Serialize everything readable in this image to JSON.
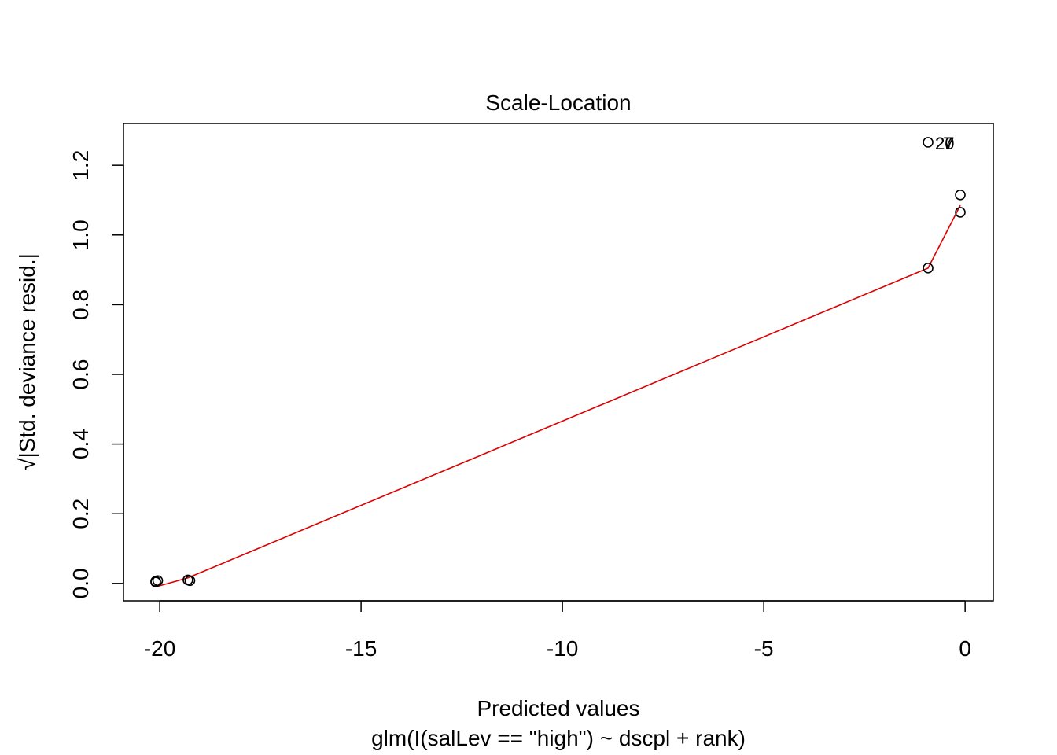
{
  "chart_data": {
    "type": "scatter",
    "title": "Scale-Location",
    "xlabel": "Predicted values",
    "ylabel": "√|Std. deviance resid.|",
    "subtitle": "glm(I(salLev == \"high\") ~ dscpl + rank)",
    "xlim": [
      -20.9,
      0.7
    ],
    "ylim": [
      -0.05,
      1.32
    ],
    "x_ticks": [
      -20,
      -15,
      -10,
      -5,
      0
    ],
    "x_tick_labels": [
      "-20",
      "-15",
      "-10",
      "-5",
      "0"
    ],
    "y_ticks": [
      0.0,
      0.2,
      0.4,
      0.6,
      0.8,
      1.0,
      1.2
    ],
    "y_tick_labels": [
      "0.0",
      "0.2",
      "0.4",
      "0.6",
      "0.8",
      "1.0",
      "1.2"
    ],
    "grid": false,
    "points": [
      {
        "x": -20.1,
        "y": 0.006
      },
      {
        "x": -20.05,
        "y": 0.008
      },
      {
        "x": -20.1,
        "y": 0.004
      },
      {
        "x": -19.3,
        "y": 0.01
      },
      {
        "x": -19.25,
        "y": 0.008
      },
      {
        "x": -0.92,
        "y": 0.905
      },
      {
        "x": -0.92,
        "y": 1.266
      },
      {
        "x": -0.12,
        "y": 1.115
      },
      {
        "x": -0.12,
        "y": 1.065
      }
    ],
    "point_labels": [
      {
        "text": "27",
        "x": -0.92,
        "y": 1.266
      },
      {
        "text": "20",
        "x": -0.92,
        "y": 1.266
      },
      {
        "text": "7",
        "x": -0.92,
        "y": 1.266
      }
    ],
    "smooth_line": {
      "color": "#dd0000",
      "x": [
        -20.1,
        -19.3,
        -0.92,
        -0.12
      ],
      "y": [
        -0.01,
        0.016,
        0.905,
        1.085
      ]
    }
  }
}
